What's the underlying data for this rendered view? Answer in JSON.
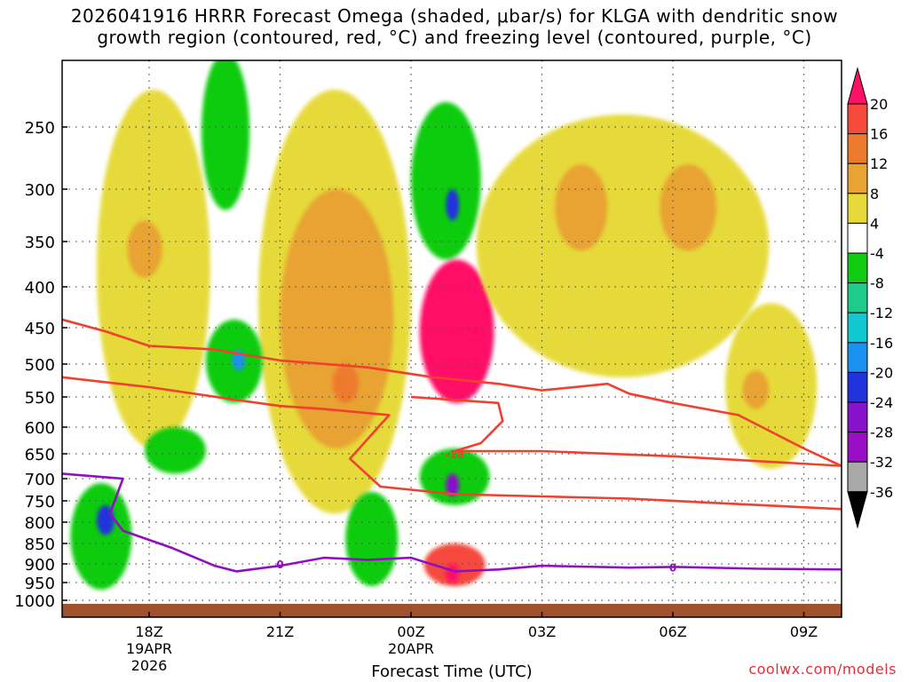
{
  "title_line1": "2026041916 HRRR Forecast Omega (shaded, μbar/s) for KLGA with dendritic snow",
  "title_line2": "growth region (contoured, red, °C) and freezing level (contoured, purple, °C)",
  "credit": "coolwx.com/models",
  "chart_data": {
    "type": "heatmap",
    "xlabel": "Forecast Time (UTC)",
    "ylabel": "",
    "x_range_hours_since_18Z": [
      -2.0,
      16.0
    ],
    "y_levels_hPa": [
      250,
      300,
      350,
      400,
      450,
      500,
      550,
      600,
      650,
      700,
      750,
      800,
      850,
      900,
      950,
      1000
    ],
    "y_range_hPa": [
      200,
      1020
    ],
    "x_ticks": [
      {
        "hour": 0,
        "lines": [
          "18Z",
          "19APR",
          "2026"
        ]
      },
      {
        "hour": 3,
        "lines": [
          "21Z"
        ]
      },
      {
        "hour": 6,
        "lines": [
          "00Z",
          "20APR"
        ]
      },
      {
        "hour": 9,
        "lines": [
          "03Z"
        ]
      },
      {
        "hour": 12,
        "lines": [
          "06Z"
        ]
      },
      {
        "hour": 15,
        "lines": [
          "09Z"
        ]
      }
    ],
    "colorbar": {
      "labels": [
        "20",
        "16",
        "12",
        "8",
        "4",
        "-4",
        "-8",
        "-12",
        "-16",
        "-20",
        "-24",
        "-28",
        "-32",
        "-36"
      ],
      "bins": [
        {
          "color": "#ff1166"
        },
        {
          "color": "#f54a3c"
        },
        {
          "color": "#ee7a2e"
        },
        {
          "color": "#e8a333"
        },
        {
          "color": "#e6da3a"
        },
        {
          "color": "#ffffff"
        },
        {
          "color": "#11cc11"
        },
        {
          "color": "#1ccc88"
        },
        {
          "color": "#11c8d0"
        },
        {
          "color": "#1a90f0"
        },
        {
          "color": "#2233dd"
        },
        {
          "color": "#8811cc"
        },
        {
          "color": "#9a0fc6"
        },
        {
          "color": "#a8a8a8"
        },
        {
          "color": "#000000"
        }
      ]
    },
    "omega_features": [
      {
        "name": "upper-left-weak-rising",
        "bin_color": "#e6da3a",
        "hours": [
          -1.2,
          1.4
        ],
        "hPa": [
          220,
          640
        ]
      },
      {
        "name": "upper-left-8-12",
        "bin_color": "#e8a333",
        "hours": [
          -0.5,
          0.3
        ],
        "hPa": [
          330,
          390
        ]
      },
      {
        "name": "upper-sinking-jet",
        "bin_color": "#11cc11",
        "hours": [
          1.2,
          2.3
        ],
        "hPa": [
          190,
          320
        ]
      },
      {
        "name": "central-weak-band",
        "bin_color": "#e6da3a",
        "hours": [
          2.5,
          6.0
        ],
        "hPa": [
          220,
          780
        ]
      },
      {
        "name": "central-8-12",
        "bin_color": "#e8a333",
        "hours": [
          3.0,
          5.6
        ],
        "hPa": [
          300,
          640
        ]
      },
      {
        "name": "central-12-16",
        "bin_color": "#ee7a2e",
        "hours": [
          4.2,
          4.8
        ],
        "hPa": [
          500,
          560
        ]
      },
      {
        "name": "mid-sinking-1",
        "bin_color": "#11cc11",
        "hours": [
          1.3,
          2.6
        ],
        "hPa": [
          440,
          560
        ]
      },
      {
        "name": "mid-sinking-core-1",
        "bin_color": "#1a90f0",
        "hours": [
          1.9,
          2.2
        ],
        "hPa": [
          480,
          510
        ]
      },
      {
        "name": "mid-sinking-2",
        "bin_color": "#11cc11",
        "hours": [
          -0.1,
          1.3
        ],
        "hPa": [
          600,
          690
        ]
      },
      {
        "name": "low-sinking-left",
        "bin_color": "#11cc11",
        "hours": [
          -1.8,
          -0.4
        ],
        "hPa": [
          710,
          970
        ]
      },
      {
        "name": "low-sinking-left-core",
        "bin_color": "#2233dd",
        "hours": [
          -1.2,
          -0.8
        ],
        "hPa": [
          760,
          830
        ]
      },
      {
        "name": "low-sinking-mid",
        "bin_color": "#11cc11",
        "hours": [
          4.5,
          5.7
        ],
        "hPa": [
          730,
          960
        ]
      },
      {
        "name": "upper-center-sinking",
        "bin_color": "#11cc11",
        "hours": [
          6.0,
          7.6
        ],
        "hPa": [
          230,
          370
        ]
      },
      {
        "name": "upper-center-sinking-core",
        "bin_color": "#2233dd",
        "hours": [
          6.8,
          7.1
        ],
        "hPa": [
          300,
          330
        ]
      },
      {
        "name": "strong-rising-core",
        "bin_color": "#ff1166",
        "hours": [
          6.2,
          7.9
        ],
        "hPa": [
          370,
          560
        ]
      },
      {
        "name": "mid-center-sinking",
        "bin_color": "#11cc11",
        "hours": [
          6.2,
          7.8
        ],
        "hPa": [
          640,
          760
        ]
      },
      {
        "name": "mid-center-sinking-core",
        "bin_color": "#8811cc",
        "hours": [
          6.8,
          7.1
        ],
        "hPa": [
          690,
          740
        ]
      },
      {
        "name": "low-center-rising",
        "bin_color": "#f54a3c",
        "hours": [
          6.3,
          7.7
        ],
        "hPa": [
          850,
          960
        ]
      },
      {
        "name": "low-center-rising-core",
        "bin_color": "#ff1166",
        "hours": [
          6.8,
          7.1
        ],
        "hPa": [
          900,
          950
        ]
      },
      {
        "name": "right-weak-rising",
        "bin_color": "#e6da3a",
        "hours": [
          7.5,
          14.2
        ],
        "hPa": [
          240,
          520
        ]
      },
      {
        "name": "right-8-12-a",
        "bin_color": "#e8a333",
        "hours": [
          9.3,
          10.5
        ],
        "hPa": [
          280,
          360
        ]
      },
      {
        "name": "right-8-12-b",
        "bin_color": "#e8a333",
        "hours": [
          11.7,
          13.0
        ],
        "hPa": [
          280,
          360
        ]
      },
      {
        "name": "far-right-weak-rising",
        "bin_color": "#e6da3a",
        "hours": [
          13.2,
          15.3
        ],
        "hPa": [
          420,
          680
        ]
      },
      {
        "name": "far-right-8-12",
        "bin_color": "#e8a333",
        "hours": [
          13.6,
          14.2
        ],
        "hPa": [
          510,
          570
        ]
      }
    ],
    "series": [
      {
        "name": "dgz-upper-boundary",
        "color": "#f04030",
        "points": [
          [
            -2.0,
            440
          ],
          [
            -1.0,
            455
          ],
          [
            0.0,
            475
          ],
          [
            1.5,
            480
          ],
          [
            3.0,
            495
          ],
          [
            5.0,
            505
          ],
          [
            6.5,
            520
          ],
          [
            8.0,
            530
          ],
          [
            9.0,
            540
          ],
          [
            10.5,
            530
          ],
          [
            11.0,
            545
          ],
          [
            12.0,
            560
          ],
          [
            13.5,
            580
          ],
          [
            15.0,
            640
          ],
          [
            16.0,
            680
          ]
        ]
      },
      {
        "name": "dgz-lower-boundary",
        "color": "#f04030",
        "points": [
          [
            -2.0,
            520
          ],
          [
            0.0,
            535
          ],
          [
            2.0,
            555
          ],
          [
            3.0,
            565
          ],
          [
            4.0,
            570
          ],
          [
            5.5,
            580
          ],
          [
            4.6,
            660
          ],
          [
            5.3,
            718
          ],
          [
            7.0,
            735
          ],
          [
            9.0,
            740
          ],
          [
            11.0,
            745
          ],
          [
            13.0,
            755
          ],
          [
            16.0,
            770
          ]
        ]
      },
      {
        "name": "dgz-inner-boundary",
        "color": "#f04030",
        "points": [
          [
            6.0,
            550
          ],
          [
            8.0,
            560
          ],
          [
            8.1,
            590
          ],
          [
            7.6,
            630
          ],
          [
            7.0,
            645
          ],
          [
            9.0,
            645
          ],
          [
            12.0,
            655
          ],
          [
            16.0,
            675
          ]
        ]
      },
      {
        "name": "freezing-level",
        "color": "#9010c0",
        "points": [
          [
            -2.0,
            690
          ],
          [
            -0.6,
            700
          ],
          [
            -0.9,
            780
          ],
          [
            -0.6,
            820
          ],
          [
            0.5,
            860
          ],
          [
            1.5,
            905
          ],
          [
            2.0,
            920
          ],
          [
            3.0,
            905
          ],
          [
            4.0,
            885
          ],
          [
            5.0,
            890
          ],
          [
            6.0,
            885
          ],
          [
            7.0,
            920
          ],
          [
            8.0,
            915
          ],
          [
            9.0,
            905
          ],
          [
            11.0,
            910
          ],
          [
            12.0,
            908
          ],
          [
            14.0,
            913
          ],
          [
            16.0,
            915
          ]
        ]
      }
    ],
    "contour_labels": [
      {
        "text": "-18",
        "hour": 7.0,
        "hPa": 650,
        "color": "#f04030"
      },
      {
        "text": "0",
        "hour": 3.0,
        "hPa": 900,
        "color": "#9010c0"
      },
      {
        "text": "0",
        "hour": 12.0,
        "hPa": 908,
        "color": "#9010c0"
      }
    ]
  }
}
